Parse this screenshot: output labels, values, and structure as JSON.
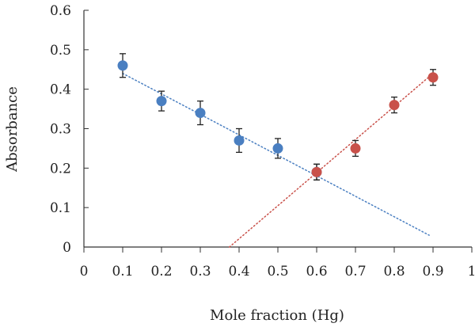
{
  "chart_data": {
    "type": "scatter",
    "xlabel": "Mole fraction (Hg)",
    "ylabel": "Absorbance",
    "xlim": [
      0,
      1
    ],
    "ylim": [
      0,
      0.6
    ],
    "x_ticks": [
      "0",
      "0.1",
      "0.2",
      "0.3",
      "0.4",
      "0.5",
      "0.6",
      "0.7",
      "0.8",
      "0.9",
      "1"
    ],
    "y_ticks": [
      "0",
      "0.1",
      "0.2",
      "0.3",
      "0.4",
      "0.5",
      "0.6"
    ],
    "grid": false,
    "series": [
      {
        "color": "#4a7fc1",
        "x": [
          0.1,
          0.2,
          0.3,
          0.4,
          0.5,
          0.6
        ],
        "y": [
          0.46,
          0.37,
          0.34,
          0.27,
          0.25,
          0.19
        ],
        "error": [
          0.03,
          0.025,
          0.03,
          0.03,
          0.025,
          0.02
        ]
      },
      {
        "color": "#c9514a",
        "x": [
          0.6,
          0.7,
          0.8,
          0.9
        ],
        "y": [
          0.19,
          0.25,
          0.36,
          0.43
        ],
        "error": [
          0.02,
          0.02,
          0.02,
          0.02
        ]
      }
    ],
    "trendlines": [
      {
        "color": "#4a7fc1",
        "from": [
          0.1,
          0.44
        ],
        "to": [
          0.89,
          0.03
        ]
      },
      {
        "color": "#c9514a",
        "from": [
          0.375,
          0.0
        ],
        "to": [
          0.9,
          0.44
        ]
      }
    ]
  }
}
